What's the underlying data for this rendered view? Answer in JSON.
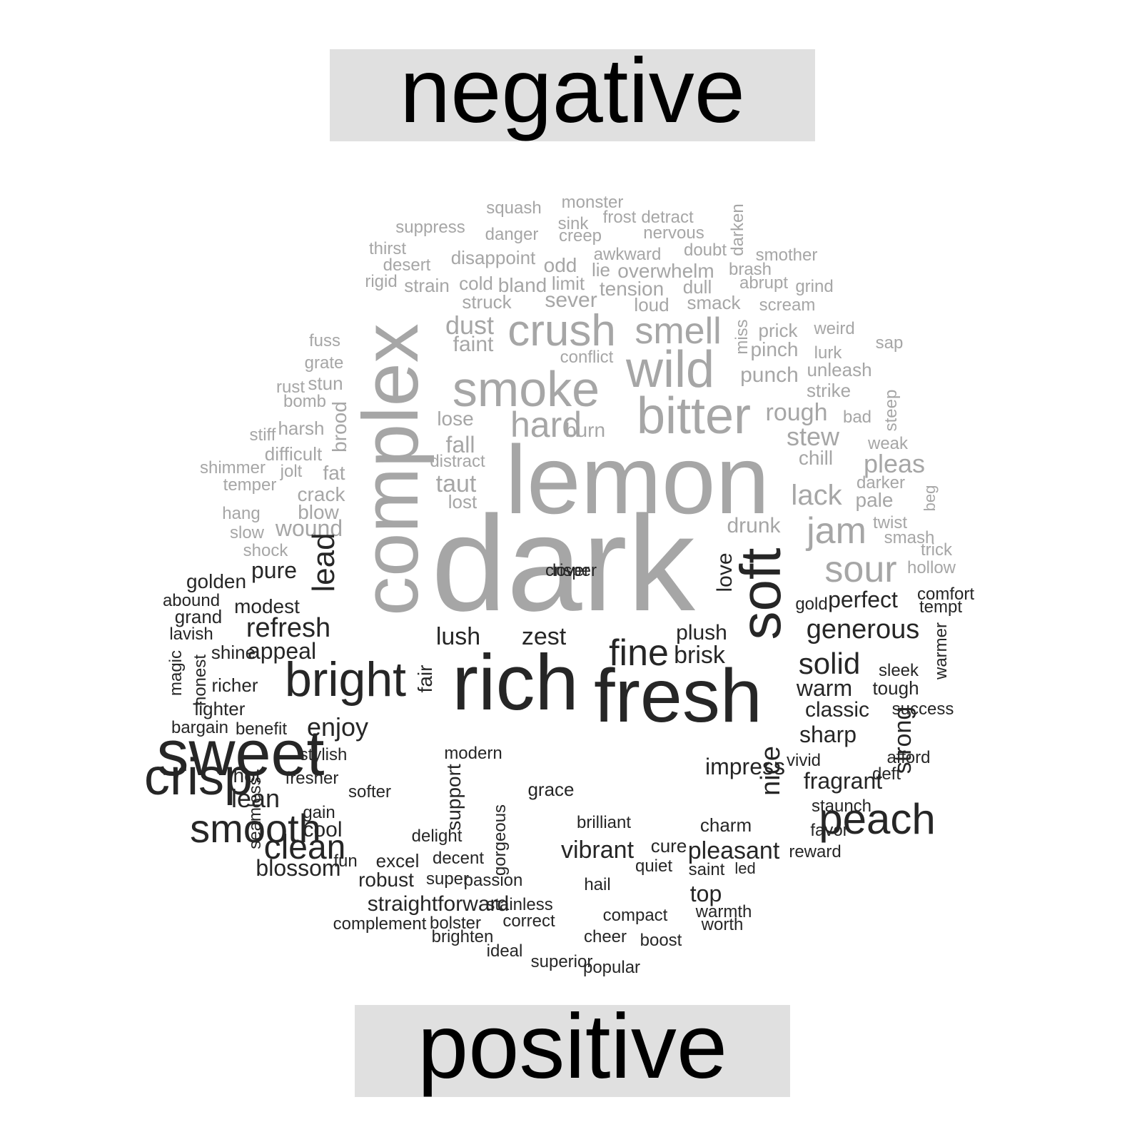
{
  "headers": {
    "negative": "negative",
    "positive": "positive"
  },
  "colors": {
    "negative": "#a6a6a6",
    "positive": "#262626",
    "header_bg": "#e0e0e0",
    "header_text": "#000000"
  },
  "negative_words": [
    {
      "text": "squash",
      "s": 24
    },
    {
      "text": "monster",
      "s": 24
    },
    {
      "text": "suppress",
      "s": 24
    },
    {
      "text": "sink",
      "s": 24
    },
    {
      "text": "frost",
      "s": 24
    },
    {
      "text": "detract",
      "s": 24
    },
    {
      "text": "danger",
      "s": 24
    },
    {
      "text": "creep",
      "s": 24
    },
    {
      "text": "nervous",
      "s": 24
    },
    {
      "text": "darken",
      "s": 24,
      "rot": true
    },
    {
      "text": "thirst",
      "s": 24
    },
    {
      "text": "awkward",
      "s": 24
    },
    {
      "text": "doubt",
      "s": 24
    },
    {
      "text": "smother",
      "s": 24
    },
    {
      "text": "disappoint",
      "s": 26
    },
    {
      "text": "desert",
      "s": 24
    },
    {
      "text": "odd",
      "s": 28
    },
    {
      "text": "lie",
      "s": 26
    },
    {
      "text": "overwhelm",
      "s": 28
    },
    {
      "text": "brash",
      "s": 24
    },
    {
      "text": "rigid",
      "s": 24
    },
    {
      "text": "strain",
      "s": 26
    },
    {
      "text": "cold",
      "s": 26
    },
    {
      "text": "bland",
      "s": 28
    },
    {
      "text": "limit",
      "s": 26
    },
    {
      "text": "tension",
      "s": 28
    },
    {
      "text": "dull",
      "s": 26
    },
    {
      "text": "abrupt",
      "s": 24
    },
    {
      "text": "grind",
      "s": 24
    },
    {
      "text": "struck",
      "s": 26
    },
    {
      "text": "sever",
      "s": 30
    },
    {
      "text": "loud",
      "s": 26
    },
    {
      "text": "smack",
      "s": 26
    },
    {
      "text": "scream",
      "s": 24
    },
    {
      "text": "dust",
      "s": 36
    },
    {
      "text": "crush",
      "s": 62
    },
    {
      "text": "smell",
      "s": 52
    },
    {
      "text": "miss",
      "s": 24,
      "rot": true
    },
    {
      "text": "prick",
      "s": 26
    },
    {
      "text": "weird",
      "s": 24
    },
    {
      "text": "fuss",
      "s": 24
    },
    {
      "text": "faint",
      "s": 30
    },
    {
      "text": "pinch",
      "s": 28
    },
    {
      "text": "lurk",
      "s": 24
    },
    {
      "text": "sap",
      "s": 24
    },
    {
      "text": "conflict",
      "s": 24
    },
    {
      "text": "grate",
      "s": 24
    },
    {
      "text": "wild",
      "s": 72
    },
    {
      "text": "smoke",
      "s": 70
    },
    {
      "text": "unleash",
      "s": 26
    },
    {
      "text": "stun",
      "s": 26
    },
    {
      "text": "punch",
      "s": 30
    },
    {
      "text": "rust",
      "s": 24
    },
    {
      "text": "strike",
      "s": 26
    },
    {
      "text": "bomb",
      "s": 24
    },
    {
      "text": "complex",
      "s": 110,
      "rot": true
    },
    {
      "text": "brood",
      "s": 28,
      "rot": true
    },
    {
      "text": "lose",
      "s": 28
    },
    {
      "text": "bitter",
      "s": 72
    },
    {
      "text": "rough",
      "s": 34
    },
    {
      "text": "steep",
      "s": 24,
      "rot": true
    },
    {
      "text": "bad",
      "s": 24
    },
    {
      "text": "harsh",
      "s": 26
    },
    {
      "text": "hard",
      "s": 50
    },
    {
      "text": "burn",
      "s": 28
    },
    {
      "text": "stiff",
      "s": 24
    },
    {
      "text": "stew",
      "s": 36
    },
    {
      "text": "weak",
      "s": 24
    },
    {
      "text": "fall",
      "s": 32
    },
    {
      "text": "difficult",
      "s": 26
    },
    {
      "text": "chill",
      "s": 28
    },
    {
      "text": "pleas",
      "s": 36
    },
    {
      "text": "distract",
      "s": 24
    },
    {
      "text": "shimmer",
      "s": 24
    },
    {
      "text": "jolt",
      "s": 24
    },
    {
      "text": "fat",
      "s": 28
    },
    {
      "text": "temper",
      "s": 24
    },
    {
      "text": "taut",
      "s": 34
    },
    {
      "text": "lemon",
      "s": 136
    },
    {
      "text": "darker",
      "s": 24
    },
    {
      "text": "crack",
      "s": 28
    },
    {
      "text": "lack",
      "s": 40
    },
    {
      "text": "lost",
      "s": 26
    },
    {
      "text": "pale",
      "s": 28
    },
    {
      "text": "beg",
      "s": 22,
      "rot": true
    },
    {
      "text": "hang",
      "s": 24
    },
    {
      "text": "blow",
      "s": 28
    },
    {
      "text": "drunk",
      "s": 30
    },
    {
      "text": "twist",
      "s": 24
    },
    {
      "text": "wound",
      "s": 32
    },
    {
      "text": "jam",
      "s": 52
    },
    {
      "text": "smash",
      "s": 24
    },
    {
      "text": "slow",
      "s": 24
    },
    {
      "text": "trick",
      "s": 24
    },
    {
      "text": "shock",
      "s": 24
    },
    {
      "text": "dark",
      "s": 190
    },
    {
      "text": "sour",
      "s": 52
    },
    {
      "text": "hollow",
      "s": 24
    }
  ],
  "positive_words": [
    {
      "text": "lead",
      "s": 44,
      "rot": true
    },
    {
      "text": "pure",
      "s": 32
    },
    {
      "text": "love",
      "s": 30,
      "rot": true
    },
    {
      "text": "soft",
      "s": 80,
      "rot": true
    },
    {
      "text": "golden",
      "s": 28
    },
    {
      "text": "perfect",
      "s": 32
    },
    {
      "text": "comfort",
      "s": 24
    },
    {
      "text": "abound",
      "s": 24
    },
    {
      "text": "modest",
      "s": 28
    },
    {
      "text": "gold",
      "s": 24
    },
    {
      "text": "tempt",
      "s": 24
    },
    {
      "text": "grand",
      "s": 26
    },
    {
      "text": "refresh",
      "s": 38
    },
    {
      "text": "plush",
      "s": 30
    },
    {
      "text": "generous",
      "s": 38
    },
    {
      "text": "lavish",
      "s": 24
    },
    {
      "text": "lush",
      "s": 34
    },
    {
      "text": "zest",
      "s": 34
    },
    {
      "text": "warmer",
      "s": 24,
      "rot": true
    },
    {
      "text": "shine",
      "s": 26
    },
    {
      "text": "appeal",
      "s": 32
    },
    {
      "text": "fine",
      "s": 52
    },
    {
      "text": "brisk",
      "s": 34
    },
    {
      "text": "magic",
      "s": 24,
      "rot": true
    },
    {
      "text": "solid",
      "s": 42
    },
    {
      "text": "honest",
      "s": 24,
      "rot": true
    },
    {
      "text": "sleek",
      "s": 24
    },
    {
      "text": "bright",
      "s": 68
    },
    {
      "text": "fair",
      "s": 28,
      "rot": true
    },
    {
      "text": "rich",
      "s": 110
    },
    {
      "text": "richer",
      "s": 26
    },
    {
      "text": "fresh",
      "s": 106
    },
    {
      "text": "warm",
      "s": 32
    },
    {
      "text": "tough",
      "s": 26
    },
    {
      "text": "lighter",
      "s": 26
    },
    {
      "text": "classic",
      "s": 30
    },
    {
      "text": "success",
      "s": 24
    },
    {
      "text": "bargain",
      "s": 24
    },
    {
      "text": "benefit",
      "s": 24
    },
    {
      "text": "enjoy",
      "s": 36
    },
    {
      "text": "sharp",
      "s": 32
    },
    {
      "text": "sweet",
      "s": 90
    },
    {
      "text": "modern",
      "s": 24
    },
    {
      "text": "stylish",
      "s": 24
    },
    {
      "text": "impress",
      "s": 32
    },
    {
      "text": "nice",
      "s": 38,
      "rot": true
    },
    {
      "text": "strong",
      "s": 34,
      "rot": true
    },
    {
      "text": "afford",
      "s": 24
    },
    {
      "text": "vivid",
      "s": 24
    },
    {
      "text": "crisp",
      "s": 72
    },
    {
      "text": "hot",
      "s": 28
    },
    {
      "text": "fresher",
      "s": 24
    },
    {
      "text": "deft",
      "s": 24
    },
    {
      "text": "fragrant",
      "s": 32
    },
    {
      "text": "softer",
      "s": 24
    },
    {
      "text": "grace",
      "s": 26
    },
    {
      "text": "support",
      "s": 28,
      "rot": true
    },
    {
      "text": "lean",
      "s": 36
    },
    {
      "text": "peach",
      "s": 60
    },
    {
      "text": "staunch",
      "s": 24
    },
    {
      "text": "seamless",
      "s": 24,
      "rot": true
    },
    {
      "text": "gain",
      "s": 24
    },
    {
      "text": "brilliant",
      "s": 24
    },
    {
      "text": "charm",
      "s": 26
    },
    {
      "text": "smooth",
      "s": 56
    },
    {
      "text": "cool",
      "s": 30
    },
    {
      "text": "favor",
      "s": 24
    },
    {
      "text": "fun",
      "s": 24
    },
    {
      "text": "delight",
      "s": 24
    },
    {
      "text": "gorgeous",
      "s": 24,
      "rot": true
    },
    {
      "text": "vibrant",
      "s": 34
    },
    {
      "text": "cure",
      "s": 26
    },
    {
      "text": "clean",
      "s": 48
    },
    {
      "text": "pleasant",
      "s": 34
    },
    {
      "text": "reward",
      "s": 24
    },
    {
      "text": "excel",
      "s": 26
    },
    {
      "text": "decent",
      "s": 24
    },
    {
      "text": "quiet",
      "s": 24
    },
    {
      "text": "blossom",
      "s": 32
    },
    {
      "text": "saint",
      "s": 24
    },
    {
      "text": "led",
      "s": 22
    },
    {
      "text": "robust",
      "s": 28
    },
    {
      "text": "super",
      "s": 24
    },
    {
      "text": "passion",
      "s": 24
    },
    {
      "text": "hail",
      "s": 24
    },
    {
      "text": "top",
      "s": 32
    },
    {
      "text": "straightforward",
      "s": 30
    },
    {
      "text": "stainless",
      "s": 24
    },
    {
      "text": "compact",
      "s": 24
    },
    {
      "text": "warmth",
      "s": 24
    },
    {
      "text": "complement",
      "s": 24
    },
    {
      "text": "bolster",
      "s": 24
    },
    {
      "text": "correct",
      "s": 24
    },
    {
      "text": "worth",
      "s": 24
    },
    {
      "text": "brighten",
      "s": 24
    },
    {
      "text": "cheer",
      "s": 24
    },
    {
      "text": "boost",
      "s": 24
    },
    {
      "text": "ideal",
      "s": 24
    },
    {
      "text": "superior",
      "s": 24
    },
    {
      "text": "popular",
      "s": 24
    },
    {
      "text": "lover",
      "s": 24
    },
    {
      "text": "crisper",
      "s": 24
    }
  ]
}
